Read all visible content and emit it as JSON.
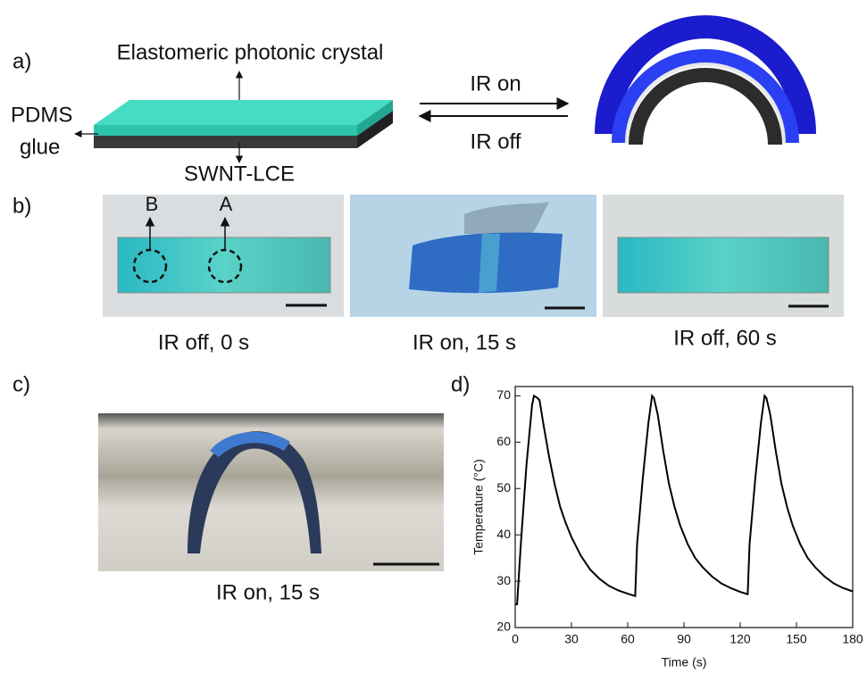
{
  "panel_a": {
    "label": "a)",
    "top_layer": "Elastomeric photonic crystal",
    "glue_line1": "PDMS",
    "glue_line2": "glue",
    "bottom_layer": "SWNT-LCE",
    "forward": "IR on",
    "backward": "IR off"
  },
  "panel_b": {
    "label": "b)",
    "points": [
      "B",
      "A"
    ],
    "captions": [
      "IR off, 0 s",
      "IR on, 15 s",
      "IR off, 60 s"
    ]
  },
  "panel_c": {
    "label": "c)",
    "caption": "IR on, 15 s"
  },
  "chart_data": {
    "type": "line",
    "panel_label": "d)",
    "x_label": "Time (s)",
    "y_label": "Temperature (°C)",
    "xlim": [
      0,
      180
    ],
    "xticks": [
      0,
      30,
      60,
      90,
      120,
      150,
      180
    ],
    "ylim": [
      20,
      72
    ],
    "yticks": [
      20,
      30,
      40,
      50,
      60,
      70
    ],
    "x": [
      0,
      1,
      3,
      6,
      9,
      10,
      12,
      13,
      15,
      18,
      21,
      24,
      27,
      30,
      35,
      40,
      45,
      50,
      55,
      60,
      64,
      65,
      68,
      71,
      73,
      74,
      76,
      79,
      82,
      85,
      88,
      92,
      96,
      100,
      105,
      110,
      115,
      120,
      124,
      125,
      128,
      131,
      133,
      134,
      136,
      139,
      142,
      145,
      148,
      152,
      156,
      160,
      165,
      170,
      175,
      180
    ],
    "series": [
      {
        "color": "#000000",
        "values": [
          25,
          25,
          38,
          55,
          68,
          70,
          69.5,
          69,
          64,
          57,
          51,
          46,
          42.5,
          39.5,
          35.5,
          32.5,
          30.5,
          29,
          28,
          27.3,
          26.8,
          38,
          52,
          64,
          70,
          69.5,
          66,
          58,
          51,
          46,
          42,
          38,
          35,
          33,
          31,
          29.5,
          28.5,
          27.7,
          27.2,
          38,
          52,
          64,
          70,
          69.5,
          66,
          58,
          51,
          46,
          42,
          38,
          35,
          33,
          31,
          29.5,
          28.5,
          27.8
        ]
      }
    ]
  }
}
